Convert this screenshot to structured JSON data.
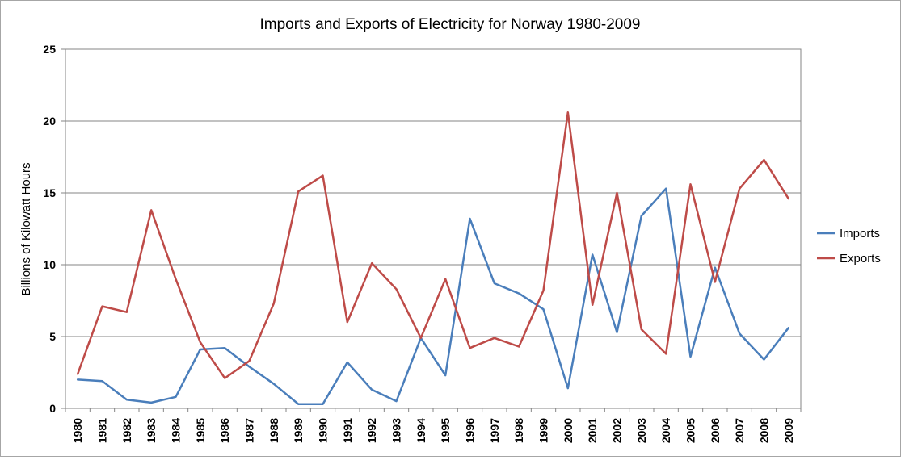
{
  "chart_data": {
    "type": "line",
    "title": "Imports and Exports of Electricity for Norway 1980-2009",
    "xlabel": "",
    "ylabel": "Billions of Kilowatt Hours",
    "ylim": [
      0,
      25
    ],
    "yticks": [
      0,
      5,
      10,
      15,
      20,
      25
    ],
    "grid": true,
    "legend_position": "right",
    "categories": [
      "1980",
      "1981",
      "1982",
      "1983",
      "1984",
      "1985",
      "1986",
      "1987",
      "1988",
      "1989",
      "1990",
      "1991",
      "1992",
      "1993",
      "1994",
      "1995",
      "1996",
      "1997",
      "1998",
      "1999",
      "2000",
      "2001",
      "2002",
      "2003",
      "2004",
      "2005",
      "2006",
      "2007",
      "2008",
      "2009"
    ],
    "series": [
      {
        "name": "Imports",
        "color": "#4a7ebb",
        "values": [
          2.0,
          1.9,
          0.6,
          0.4,
          0.8,
          4.1,
          4.2,
          2.9,
          1.7,
          0.3,
          0.3,
          3.2,
          1.3,
          0.5,
          4.9,
          2.3,
          13.2,
          8.7,
          8.0,
          6.9,
          1.4,
          10.7,
          5.3,
          13.4,
          15.3,
          3.6,
          9.8,
          5.2,
          3.4,
          5.6
        ]
      },
      {
        "name": "Exports",
        "color": "#be4b48",
        "values": [
          2.4,
          7.1,
          6.7,
          13.8,
          9.0,
          4.6,
          2.1,
          3.3,
          7.3,
          15.1,
          16.2,
          6.0,
          10.1,
          8.3,
          4.9,
          9.0,
          4.2,
          4.9,
          4.3,
          8.2,
          20.6,
          7.2,
          15.0,
          5.5,
          3.8,
          15.6,
          8.8,
          15.3,
          17.3,
          14.6
        ]
      }
    ]
  }
}
